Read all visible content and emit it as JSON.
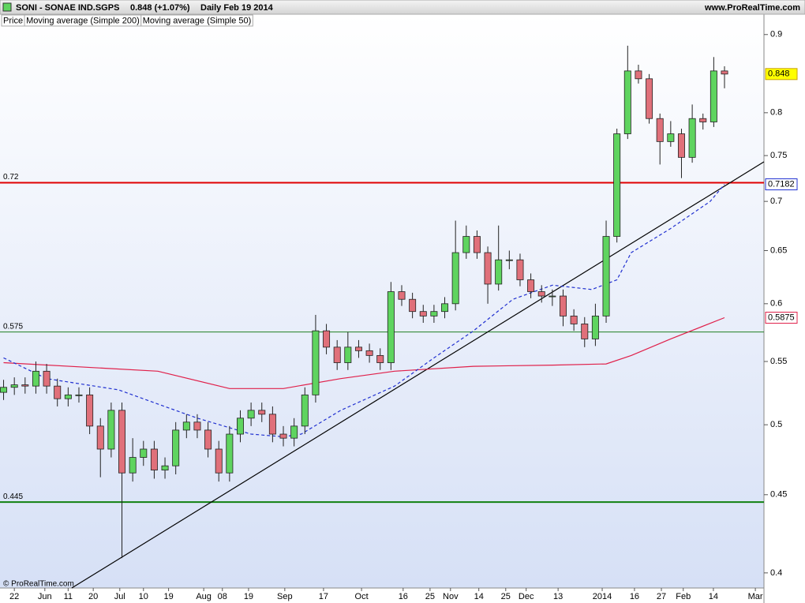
{
  "header": {
    "symbol": "SONI - SONAE IND.SGPS",
    "quote": "0.848 (+1.07%)",
    "period": "Daily  Feb 19 2014",
    "site": "www.ProRealTime.com"
  },
  "legend": {
    "price": "Price"
  },
  "footer": "© ProRealTime.com",
  "chart_data": {
    "type": "candlestick",
    "log_scale": true,
    "up_color": "#5fd45f",
    "down_color": "#e0707a",
    "x": [
      0,
      3,
      6,
      9,
      12,
      15,
      18,
      21,
      24,
      27,
      30,
      33,
      36,
      39,
      42,
      45,
      48,
      51,
      54,
      57,
      60,
      63,
      66,
      69,
      72,
      75,
      78,
      81,
      84,
      87,
      90,
      93,
      96,
      99,
      102,
      105,
      108,
      111,
      114,
      117,
      120,
      123,
      126,
      129,
      132,
      135,
      138,
      141,
      144,
      147,
      150,
      153,
      156,
      159,
      162,
      165,
      168,
      171,
      174,
      177,
      180,
      183,
      186,
      189,
      192,
      195,
      198,
      201
    ],
    "open": [
      0.525,
      0.529,
      0.531,
      0.53,
      0.542,
      0.53,
      0.52,
      0.523,
      0.523,
      0.499,
      0.482,
      0.511,
      0.465,
      0.476,
      0.482,
      0.467,
      0.47,
      0.496,
      0.502,
      0.496,
      0.482,
      0.465,
      0.493,
      0.505,
      0.511,
      0.508,
      0.493,
      0.49,
      0.499,
      0.523,
      0.576,
      0.562,
      0.549,
      0.562,
      0.559,
      0.555,
      0.549,
      0.611,
      0.604,
      0.593,
      0.589,
      0.593,
      0.6,
      0.648,
      0.664,
      0.648,
      0.618,
      0.641,
      0.641,
      0.622,
      0.611,
      0.607,
      0.607,
      0.589,
      0.582,
      0.569,
      0.589,
      0.664,
      0.775,
      0.852,
      0.842,
      0.793,
      0.766,
      0.775,
      0.748,
      0.793,
      0.789,
      0.852
    ],
    "high": [
      0.535,
      0.537,
      0.537,
      0.55,
      0.548,
      0.536,
      0.529,
      0.529,
      0.529,
      0.505,
      0.517,
      0.517,
      0.49,
      0.488,
      0.488,
      0.476,
      0.502,
      0.508,
      0.508,
      0.502,
      0.488,
      0.499,
      0.511,
      0.517,
      0.517,
      0.514,
      0.499,
      0.505,
      0.529,
      0.59,
      0.582,
      0.568,
      0.575,
      0.568,
      0.565,
      0.561,
      0.62,
      0.617,
      0.61,
      0.599,
      0.599,
      0.606,
      0.68,
      0.675,
      0.67,
      0.654,
      0.675,
      0.65,
      0.647,
      0.628,
      0.617,
      0.613,
      0.613,
      0.595,
      0.588,
      0.6,
      0.68,
      0.781,
      0.885,
      0.86,
      0.848,
      0.799,
      0.79,
      0.781,
      0.81,
      0.799,
      0.87,
      0.858
    ],
    "low": [
      0.519,
      0.523,
      0.524,
      0.524,
      0.524,
      0.514,
      0.514,
      0.517,
      0.493,
      0.462,
      0.476,
      0.409,
      0.459,
      0.47,
      0.461,
      0.461,
      0.464,
      0.49,
      0.49,
      0.476,
      0.459,
      0.459,
      0.487,
      0.499,
      0.502,
      0.487,
      0.484,
      0.484,
      0.493,
      0.517,
      0.556,
      0.543,
      0.543,
      0.553,
      0.549,
      0.543,
      0.543,
      0.598,
      0.587,
      0.583,
      0.583,
      0.587,
      0.594,
      0.642,
      0.642,
      0.6,
      0.612,
      0.632,
      0.616,
      0.605,
      0.601,
      0.598,
      0.58,
      0.576,
      0.562,
      0.563,
      0.583,
      0.658,
      0.769,
      0.836,
      0.787,
      0.74,
      0.76,
      0.725,
      0.742,
      0.78,
      0.783,
      0.83
    ],
    "close": [
      0.529,
      0.531,
      0.53,
      0.542,
      0.53,
      0.52,
      0.523,
      0.523,
      0.499,
      0.482,
      0.511,
      0.465,
      0.476,
      0.482,
      0.467,
      0.47,
      0.496,
      0.502,
      0.496,
      0.482,
      0.465,
      0.493,
      0.505,
      0.511,
      0.508,
      0.493,
      0.49,
      0.499,
      0.523,
      0.576,
      0.562,
      0.549,
      0.562,
      0.559,
      0.555,
      0.549,
      0.611,
      0.604,
      0.593,
      0.589,
      0.593,
      0.6,
      0.648,
      0.664,
      0.648,
      0.618,
      0.641,
      0.641,
      0.622,
      0.611,
      0.607,
      0.607,
      0.589,
      0.582,
      0.569,
      0.589,
      0.664,
      0.775,
      0.852,
      0.842,
      0.793,
      0.766,
      0.775,
      0.748,
      0.793,
      0.789,
      0.852,
      0.848
    ],
    "series": [
      {
        "name": "Moving average (Simple 200)",
        "color": "#e0204a",
        "dash": false,
        "x": [
          0,
          43,
          63,
          78,
          94,
          109,
          131,
          153,
          168,
          175,
          186,
          201
        ],
        "values": [
          0.549,
          0.542,
          0.528,
          0.528,
          0.536,
          0.542,
          0.546,
          0.547,
          0.548,
          0.555,
          0.569,
          0.5875
        ]
      },
      {
        "name": "Moving average (Simple 50)",
        "color": "#2030d0",
        "dash": true,
        "x": [
          0,
          12,
          32,
          54,
          69,
          78,
          83,
          94,
          109,
          120,
          131,
          142,
          153,
          164,
          171,
          175,
          186,
          197,
          201
        ],
        "values": [
          0.553,
          0.536,
          0.527,
          0.505,
          0.493,
          0.491,
          0.493,
          0.511,
          0.53,
          0.553,
          0.576,
          0.604,
          0.617,
          0.613,
          0.622,
          0.648,
          0.672,
          0.7,
          0.7182
        ]
      }
    ],
    "trendline": {
      "x": [
        19,
        212
      ],
      "values": [
        0.391,
        0.743
      ]
    },
    "levels": [
      {
        "value": 0.72,
        "color": "#e00000",
        "width": 2
      },
      {
        "value": 0.575,
        "color": "#208020",
        "width": 1
      },
      {
        "value": 0.445,
        "color": "#108010",
        "width": 2
      }
    ],
    "tags": [
      {
        "value": 0.848,
        "color": "#000000",
        "bg": "#ffff00",
        "border": "#c8a000"
      },
      {
        "value": 0.7182,
        "color": "#2030d0",
        "bg": "#ffffff",
        "border": "#2030d0"
      },
      {
        "value": 0.5875,
        "color": "#e0204a",
        "bg": "#ffffff",
        "border": "#e0204a"
      }
    ],
    "xlim": [
      -1,
      212
    ],
    "ylim": [
      0.391,
      0.928
    ],
    "yticks": [
      0.4,
      0.45,
      0.5,
      0.55,
      0.6,
      0.65,
      0.7,
      0.75,
      0.8,
      0.9
    ],
    "xticks": [
      {
        "value": 3,
        "label": "22"
      },
      {
        "value": 11.5,
        "label": "Jun"
      },
      {
        "value": 18,
        "label": "11"
      },
      {
        "value": 25,
        "label": "20"
      },
      {
        "value": 32.4,
        "label": "Jul"
      },
      {
        "value": 39,
        "label": "10"
      },
      {
        "value": 46,
        "label": "19"
      },
      {
        "value": 55.8,
        "label": "Aug"
      },
      {
        "value": 61,
        "label": "08"
      },
      {
        "value": 68.3,
        "label": "19"
      },
      {
        "value": 78.4,
        "label": "Sep"
      },
      {
        "value": 89.2,
        "label": "17"
      },
      {
        "value": 99.8,
        "label": "Oct"
      },
      {
        "value": 111.4,
        "label": "16"
      },
      {
        "value": 118.9,
        "label": "25"
      },
      {
        "value": 124.6,
        "label": "Nov"
      },
      {
        "value": 132.5,
        "label": "14"
      },
      {
        "value": 140,
        "label": "25"
      },
      {
        "value": 145.7,
        "label": "Dec"
      },
      {
        "value": 154.6,
        "label": "13"
      },
      {
        "value": 166.9,
        "label": "2014"
      },
      {
        "value": 175.9,
        "label": "16"
      },
      {
        "value": 183.4,
        "label": "27"
      },
      {
        "value": 189.5,
        "label": "Feb"
      },
      {
        "value": 197.9,
        "label": "14"
      },
      {
        "value": 209.6,
        "label": "Mar"
      }
    ]
  }
}
